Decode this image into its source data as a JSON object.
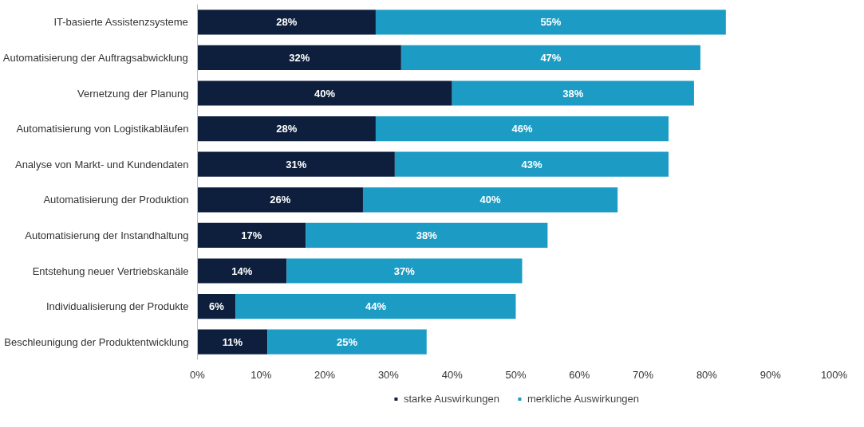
{
  "chart_data": {
    "type": "bar",
    "orientation": "horizontal",
    "stacked": true,
    "categories": [
      "IT-basierte Assistenzsysteme",
      "Automatisierung der Auftragsabwicklung",
      "Vernetzung der Planung",
      "Automatisierung von Logistikabläufen",
      "Analyse von Markt- und Kundendaten",
      "Automatisierung der Produktion",
      "Automatisierung der Instandhaltung",
      "Entstehung neuer Vertriebskanäle",
      "Individualisierung der Produkte",
      "Beschleunigung der Produktentwicklung"
    ],
    "series": [
      {
        "name": "starke Auswirkungen",
        "color": "#0e1f3d",
        "values": [
          28,
          32,
          40,
          28,
          31,
          26,
          17,
          14,
          6,
          11
        ],
        "value_labels": [
          "28%",
          "32%",
          "40%",
          "28%",
          "31%",
          "26%",
          "17%",
          "14%",
          "6%",
          "11%"
        ]
      },
      {
        "name": "merkliche Auswirkungen",
        "color": "#1c9cc4",
        "values": [
          55,
          47,
          38,
          46,
          43,
          40,
          38,
          37,
          44,
          25
        ],
        "value_labels": [
          "55%",
          "47%",
          "38%",
          "46%",
          "43%",
          "40%",
          "38%",
          "37%",
          "44%",
          "25%"
        ]
      }
    ],
    "xlim": [
      0,
      100
    ],
    "xticks": [
      {
        "value": 0,
        "label": "0%"
      },
      {
        "value": 10,
        "label": "10%"
      },
      {
        "value": 20,
        "label": "20%"
      },
      {
        "value": 30,
        "label": "30%"
      },
      {
        "value": 40,
        "label": "40%"
      },
      {
        "value": 50,
        "label": "50%"
      },
      {
        "value": 60,
        "label": "60%"
      },
      {
        "value": 70,
        "label": "70%"
      },
      {
        "value": 80,
        "label": "80%"
      },
      {
        "value": 90,
        "label": "90%"
      },
      {
        "value": 100,
        "label": "100%"
      }
    ],
    "legend": "bottom",
    "grid": false
  }
}
